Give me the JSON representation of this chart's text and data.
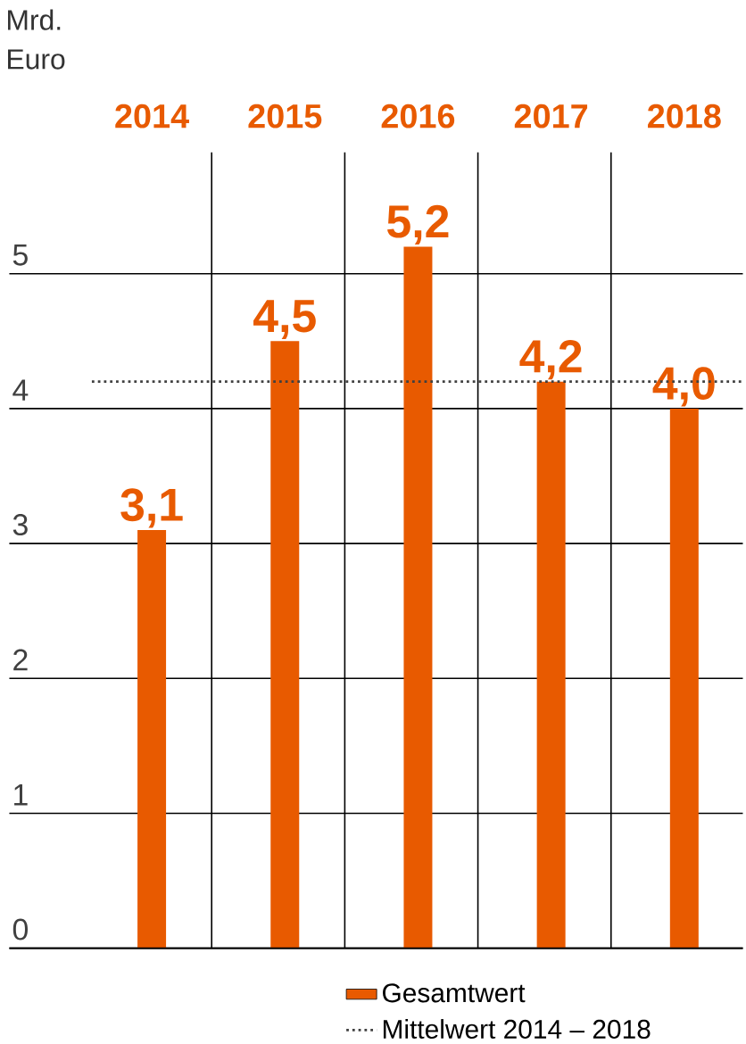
{
  "chart_data": {
    "type": "bar",
    "ylabel": "Mrd. Euro",
    "categories": [
      "2014",
      "2015",
      "2016",
      "2017",
      "2018"
    ],
    "series": [
      {
        "name": "Gesamtwert",
        "color": "#e85a00",
        "values": [
          3.1,
          4.5,
          5.2,
          4.2,
          4.0
        ],
        "value_labels": [
          "3,1",
          "4,5",
          "5,2",
          "4,2",
          "4,0"
        ]
      }
    ],
    "ylim": [
      0,
      5.9
    ],
    "yticks": [
      0,
      1,
      2,
      3,
      4,
      5
    ],
    "ref_lines": [
      {
        "axis": "y",
        "value": 4.2,
        "label": "Mittelwert 2014 – 2018",
        "color": "#404040",
        "line_style": "dotted"
      }
    ],
    "grid": true,
    "legend": "bottom"
  }
}
